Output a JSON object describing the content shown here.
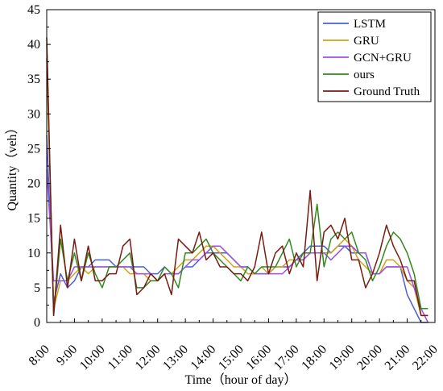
{
  "chart_data": {
    "type": "line",
    "xlabel": "Time（hour of day）",
    "ylabel": "Quantity（veh）",
    "xlim": [
      8,
      22
    ],
    "ylim": [
      0,
      45
    ],
    "grid": false,
    "legend_position": "top-right",
    "x_ticks": [
      {
        "value": 8,
        "label": "8:00"
      },
      {
        "value": 9,
        "label": "9:00"
      },
      {
        "value": 10,
        "label": "10:00"
      },
      {
        "value": 11,
        "label": "11:00"
      },
      {
        "value": 12,
        "label": "12:00"
      },
      {
        "value": 13,
        "label": "13:00"
      },
      {
        "value": 14,
        "label": "14:00"
      },
      {
        "value": 15,
        "label": "15:00"
      },
      {
        "value": 16,
        "label": "16:00"
      },
      {
        "value": 17,
        "label": "17:00"
      },
      {
        "value": 18,
        "label": "18:00"
      },
      {
        "value": 19,
        "label": "19:00"
      },
      {
        "value": 20,
        "label": "20:00"
      },
      {
        "value": 21,
        "label": "21:00"
      },
      {
        "value": 22,
        "label": "22:00"
      }
    ],
    "y_ticks": [
      0,
      5,
      10,
      15,
      20,
      25,
      30,
      35,
      40,
      45
    ],
    "x": [
      8.0,
      8.25,
      8.5,
      8.75,
      9.0,
      9.25,
      9.5,
      9.75,
      10.0,
      10.25,
      10.5,
      10.75,
      11.0,
      11.25,
      11.5,
      11.75,
      12.0,
      12.25,
      12.5,
      12.75,
      13.0,
      13.25,
      13.5,
      13.75,
      14.0,
      14.25,
      14.5,
      14.75,
      15.0,
      15.25,
      15.5,
      15.75,
      16.0,
      16.25,
      16.5,
      16.75,
      17.0,
      17.25,
      17.5,
      17.75,
      18.0,
      18.25,
      18.5,
      18.75,
      19.0,
      19.25,
      19.5,
      19.75,
      20.0,
      20.25,
      20.5,
      20.75,
      21.0,
      21.25,
      21.5,
      21.75
    ],
    "series": [
      {
        "name": "LSTM",
        "color": "#4a5fd6",
        "values": [
          27,
          3,
          7,
          5,
          6,
          8,
          8,
          9,
          9,
          9,
          8,
          8,
          8,
          8,
          8,
          7,
          7,
          8,
          7,
          7,
          8,
          8,
          9,
          10,
          10,
          10,
          10,
          9,
          8,
          8,
          7,
          7,
          7,
          8,
          8,
          8,
          9,
          10,
          11,
          11,
          11,
          10,
          11,
          11,
          10,
          10,
          10,
          7,
          7,
          8,
          8,
          8,
          4,
          2,
          0,
          0
        ]
      },
      {
        "name": "GRU",
        "color": "#d4a017",
        "values": [
          38,
          2,
          6,
          6,
          7,
          8,
          7,
          8,
          8,
          8,
          8,
          8,
          7,
          7,
          7,
          6,
          6,
          7,
          7,
          8,
          9,
          9,
          10,
          11,
          11,
          10,
          9,
          8,
          8,
          7,
          7,
          8,
          7,
          8,
          8,
          9,
          9,
          9,
          10,
          10,
          10,
          10,
          11,
          12,
          11,
          9,
          8,
          7,
          7,
          9,
          9,
          8,
          6,
          5,
          1,
          1
        ]
      },
      {
        "name": "GCN+GRU",
        "color": "#9b4fe6",
        "values": [
          22,
          6,
          6,
          6,
          8,
          8,
          8,
          8,
          8,
          8,
          8,
          8,
          8,
          7,
          7,
          7,
          6,
          7,
          7,
          7,
          8,
          9,
          9,
          10,
          11,
          11,
          10,
          9,
          8,
          8,
          7,
          7,
          7,
          7,
          7,
          8,
          9,
          9,
          10,
          10,
          10,
          9,
          10,
          11,
          11,
          10,
          10,
          7,
          7,
          8,
          8,
          8,
          8,
          5,
          2,
          0
        ]
      },
      {
        "name": "ours",
        "color": "#2f8a1e",
        "values": [
          40,
          1,
          12,
          6,
          10,
          6,
          10,
          7,
          5,
          8,
          8,
          9,
          10,
          5,
          5,
          6,
          6,
          8,
          7,
          5,
          10,
          10,
          11,
          12,
          10,
          9,
          8,
          7,
          6,
          8,
          7,
          8,
          8,
          8,
          10,
          12,
          8,
          10,
          10,
          17,
          8,
          12,
          13,
          12,
          13,
          10,
          9,
          6,
          8,
          11,
          13,
          12,
          10,
          7,
          2,
          2
        ]
      },
      {
        "name": "Ground Truth",
        "color": "#7a1a10",
        "values": [
          41,
          1,
          14,
          5,
          12,
          6,
          11,
          6,
          6,
          7,
          7,
          11,
          12,
          4,
          5,
          7,
          6,
          7,
          4,
          12,
          11,
          10,
          13,
          9,
          10,
          8,
          8,
          7,
          7,
          6,
          8,
          13,
          7,
          10,
          11,
          7,
          10,
          8,
          19,
          6,
          13,
          14,
          12,
          15,
          9,
          9,
          5,
          7,
          10,
          14,
          11,
          9,
          6,
          6,
          1,
          1
        ]
      }
    ]
  }
}
